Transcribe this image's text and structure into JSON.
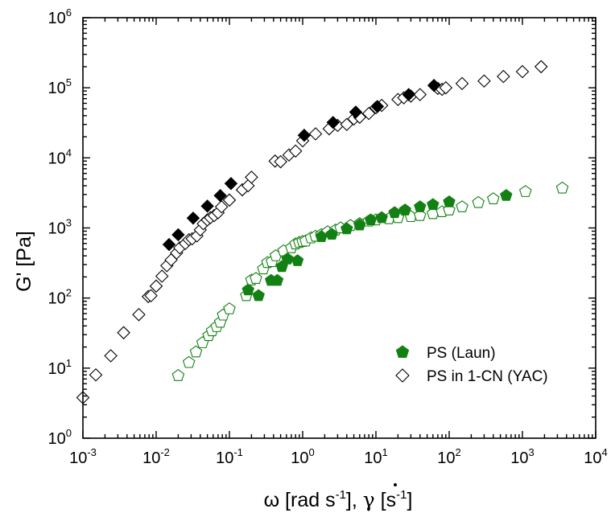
{
  "chart_data": {
    "type": "scatter",
    "xscale": "log",
    "yscale": "log",
    "xlim": [
      0.001,
      10000
    ],
    "ylim": [
      1,
      1000000
    ],
    "xticks": [
      0.001,
      0.01,
      0.1,
      1,
      10,
      100,
      1000,
      10000
    ],
    "yticks": [
      1,
      10,
      100,
      1000,
      10000,
      100000,
      1000000
    ],
    "x_tick_labels": [
      {
        "base": "10",
        "exp": "-3"
      },
      {
        "base": "10",
        "exp": "-2"
      },
      {
        "base": "10",
        "exp": "-1"
      },
      {
        "base": "10",
        "exp": "0"
      },
      {
        "base": "10",
        "exp": "1"
      },
      {
        "base": "10",
        "exp": "2"
      },
      {
        "base": "10",
        "exp": "3"
      },
      {
        "base": "10",
        "exp": "4"
      }
    ],
    "y_tick_labels": [
      {
        "base": "10",
        "exp": "0"
      },
      {
        "base": "10",
        "exp": "1"
      },
      {
        "base": "10",
        "exp": "2"
      },
      {
        "base": "10",
        "exp": "3"
      },
      {
        "base": "10",
        "exp": "4"
      },
      {
        "base": "10",
        "exp": "5"
      },
      {
        "base": "10",
        "exp": "6"
      }
    ],
    "xlabel": {
      "part1": "ω [rad s",
      "sup1": "-1",
      "part2": "], ",
      "gamma": "γ",
      "part3": " [s",
      "sup2": "-1",
      "part4": "]"
    },
    "ylabel": "G' [Pa]",
    "grid": false,
    "legend_position": "bottom-right",
    "legend": [
      {
        "label": "PS (Laun)",
        "marker": "pentagon",
        "filled": true,
        "color": "#138013"
      },
      {
        "label": "PS in 1-CN (YAC)",
        "marker": "diamond",
        "filled": false,
        "color": "#000000"
      }
    ],
    "series": [
      {
        "marker": "diamond",
        "filled": true,
        "color": "#000000",
        "x": [
          0.015,
          0.02,
          0.032,
          0.05,
          0.075,
          0.105,
          1.05,
          2.6,
          5.3,
          10.5,
          28,
          62
        ],
        "y": [
          580,
          800,
          1380,
          2050,
          2900,
          4300,
          21000,
          32000,
          45000,
          54000,
          80000,
          108000
        ]
      },
      {
        "marker": "diamond",
        "filled": false,
        "color": "#000000",
        "x": [
          0.001,
          0.0015,
          0.0024,
          0.0036,
          0.0058,
          0.0078,
          0.0085,
          0.01,
          0.012,
          0.014,
          0.016,
          0.019,
          0.021,
          0.025,
          0.028,
          0.031,
          0.036,
          0.04,
          0.044,
          0.05,
          0.055,
          0.062,
          0.07,
          0.078,
          0.1,
          0.15,
          0.18,
          0.2,
          0.42,
          0.5,
          0.65,
          0.8,
          1.0,
          1.5,
          2.3,
          3.0,
          4.0,
          5.0,
          6.0,
          8.0,
          10.0,
          12.0,
          20.0,
          24.0,
          30.0,
          40.0,
          70.0,
          80.0,
          90.0,
          150.0,
          300.0,
          550.0,
          1000.0,
          1800.0
        ],
        "y": [
          3.8,
          8.0,
          15.0,
          32.0,
          58.0,
          105.0,
          108.0,
          148.0,
          205.0,
          290.0,
          350.0,
          440.0,
          520.0,
          600.0,
          680.0,
          700.0,
          770.0,
          940.0,
          1150.0,
          1300.0,
          1400.0,
          1500.0,
          1650.0,
          2000.0,
          2500.0,
          3500.0,
          4000.0,
          5300.0,
          9000.0,
          8800.0,
          11000.0,
          12500.0,
          17500.0,
          22000.0,
          26000.0,
          29000.0,
          30000.0,
          36000.0,
          38000.0,
          43000.0,
          52000.0,
          56000.0,
          68000.0,
          72000.0,
          76000.0,
          80000.0,
          98000.0,
          95000.0,
          100000.0,
          115000.0,
          125000.0,
          145000.0,
          170000.0,
          200000.0
        ]
      },
      {
        "name": "PS (Laun)",
        "marker": "pentagon",
        "filled": true,
        "color": "#138013",
        "x": [
          0.18,
          0.25,
          0.37,
          0.45,
          0.52,
          0.62,
          0.85,
          1.8,
          2.5,
          4.0,
          6.0,
          8.5,
          12.0,
          18.0,
          25.0,
          40.0,
          60.0,
          100.0,
          600.0
        ],
        "y": [
          130.0,
          108.0,
          178.0,
          178.0,
          280.0,
          360.0,
          340.0,
          750.0,
          810.0,
          970.0,
          1100.0,
          1300.0,
          1400.0,
          1650.0,
          1800.0,
          2000.0,
          2150.0,
          2350.0,
          2900.0
        ]
      },
      {
        "marker": "pentagon",
        "filled": false,
        "color": "#138013",
        "x": [
          0.02,
          0.028,
          0.035,
          0.043,
          0.052,
          0.058,
          0.067,
          0.075,
          0.082,
          0.1,
          0.17,
          0.2,
          0.23,
          0.29,
          0.33,
          0.38,
          0.43,
          0.55,
          0.7,
          0.8,
          0.9,
          1.0,
          1.1,
          1.3,
          1.5,
          1.8,
          2.2,
          2.8,
          3.3,
          4.5,
          6.0,
          8.0,
          10.0,
          15.0,
          20.0,
          30.0,
          40.0,
          60.0,
          80.0,
          100.0,
          150.0,
          250.0,
          400.0,
          1100.0,
          3500.0
        ],
        "y": [
          7.8,
          12.0,
          17.0,
          23.0,
          29.0,
          34.0,
          39.0,
          45.0,
          57.0,
          70.0,
          108.0,
          180.0,
          190.0,
          260.0,
          320.0,
          330.0,
          400.0,
          470.0,
          520.0,
          590.0,
          620.0,
          640.0,
          650.0,
          720.0,
          760.0,
          800.0,
          880.0,
          930.0,
          1000.0,
          1080.0,
          1150.0,
          1250.0,
          1300.0,
          1350.0,
          1400.0,
          1450.0,
          1500.0,
          1600.0,
          1700.0,
          1800.0,
          2000.0,
          2300.0,
          2600.0,
          3300.0,
          3700.0
        ]
      }
    ]
  }
}
